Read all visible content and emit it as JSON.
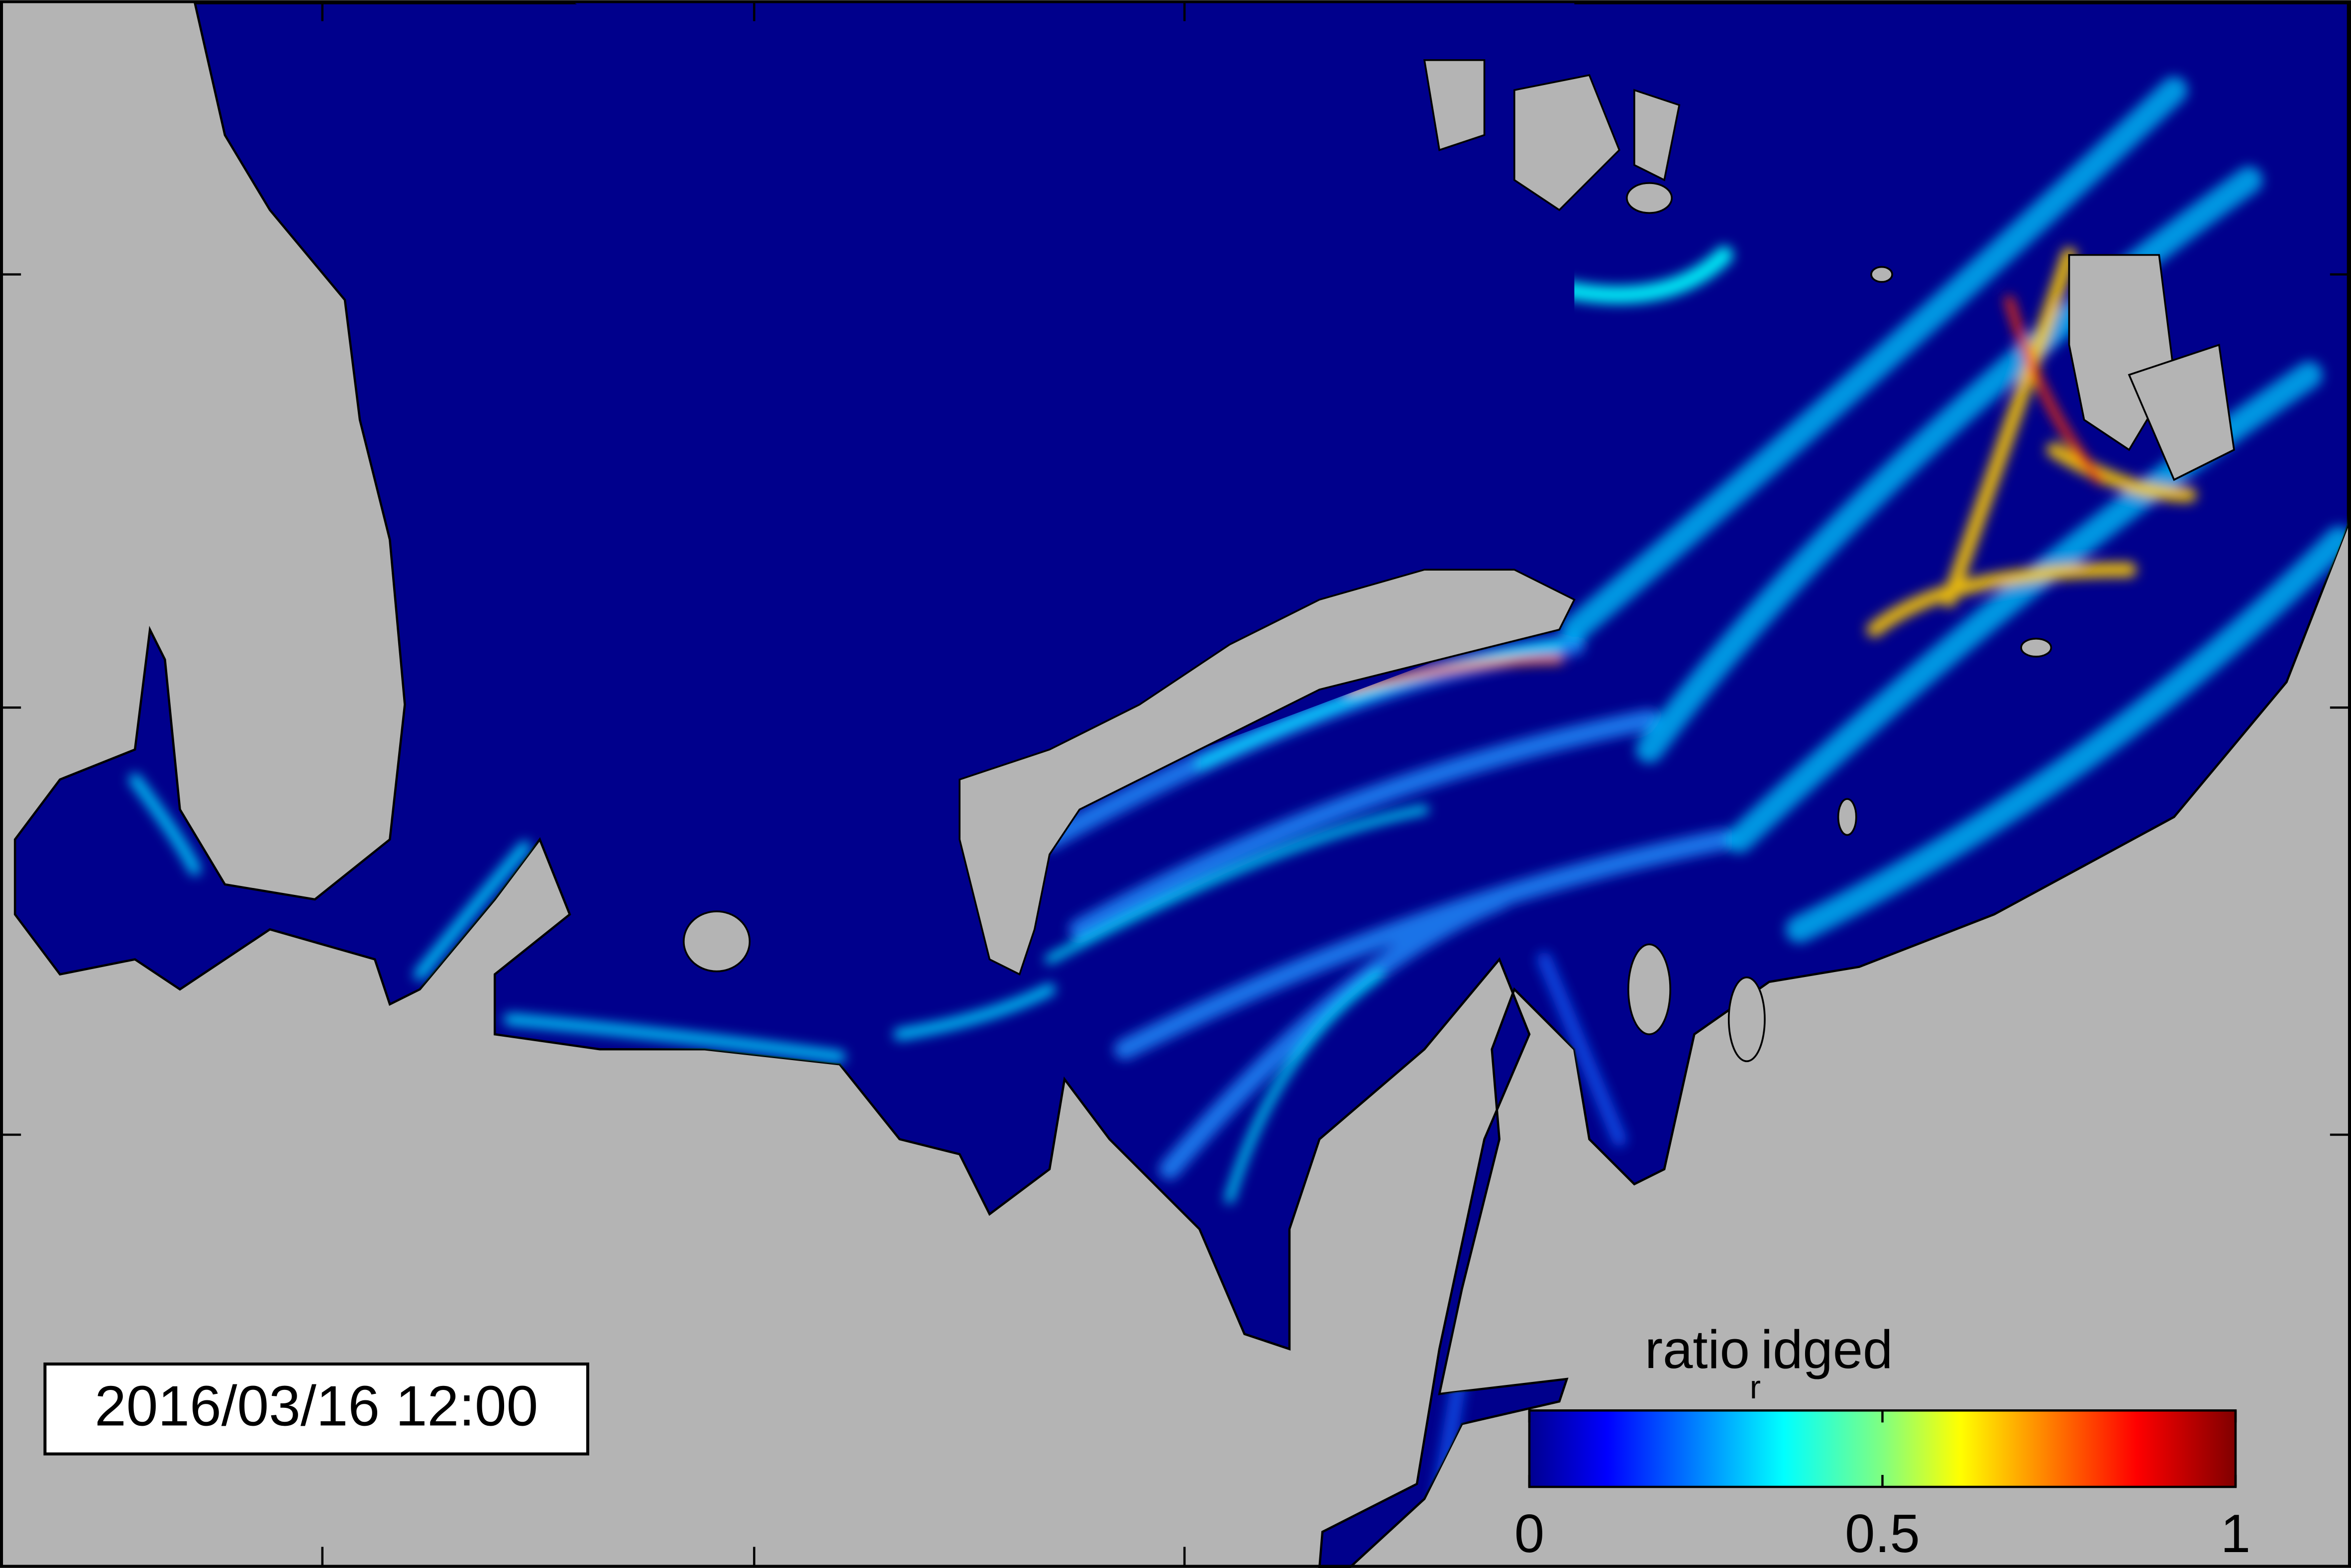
{
  "timestamp": "2016/03/16 12:00",
  "colorbar": {
    "label": "ratio",
    "label_subscript": "r",
    "label_rest": "idged",
    "range": [
      0,
      1
    ],
    "ticks": [
      0,
      0.5,
      1
    ]
  }
}
